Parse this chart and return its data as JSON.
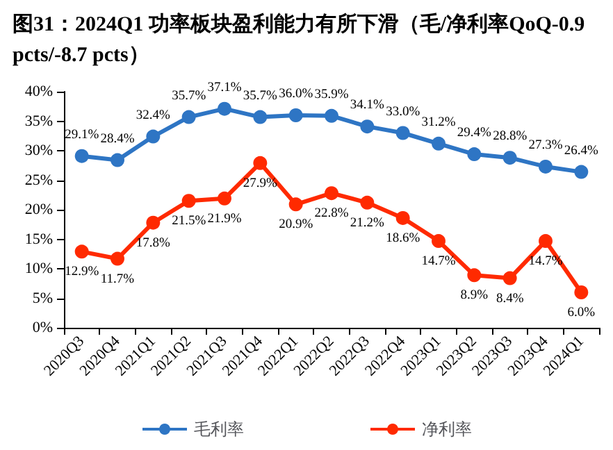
{
  "chart_data": {
    "type": "line",
    "title": "图31：2024Q1 功率板块盈利能力有所下滑（毛/净利率QoQ-0.9 pcts/-8.7 pcts）",
    "categories": [
      "2020Q3",
      "2020Q4",
      "2021Q1",
      "2021Q2",
      "2021Q3",
      "2021Q4",
      "2022Q1",
      "2022Q2",
      "2022Q3",
      "2022Q4",
      "2023Q1",
      "2023Q2",
      "2023Q3",
      "2023Q4",
      "2024Q1"
    ],
    "series": [
      {
        "name": "毛利率",
        "color": "#2e75c4",
        "values": [
          29.1,
          28.4,
          32.4,
          35.7,
          37.1,
          35.7,
          36.0,
          35.9,
          34.1,
          33.0,
          31.2,
          29.4,
          28.8,
          27.3,
          26.4
        ],
        "value_labels": [
          "29.1%",
          "28.4%",
          "32.4%",
          "35.7%",
          "37.1%",
          "35.7%",
          "36.0%",
          "35.9%",
          "34.1%",
          "33.0%",
          "31.2%",
          "29.4%",
          "28.8%",
          "27.3%",
          "26.4%"
        ]
      },
      {
        "name": "净利率",
        "color": "#ff2a00",
        "values": [
          12.9,
          11.7,
          17.8,
          21.5,
          21.9,
          27.9,
          20.9,
          22.8,
          21.2,
          18.6,
          14.7,
          8.9,
          8.4,
          14.7,
          6.0
        ],
        "value_labels": [
          "12.9%",
          "11.7%",
          "17.8%",
          "21.5%",
          "21.9%",
          "27.9%",
          "20.9%",
          "22.8%",
          "21.2%",
          "18.6%",
          "14.7%",
          "8.9%",
          "8.4%",
          "14.7%",
          "6.0%"
        ]
      }
    ],
    "ylim": [
      0,
      40
    ],
    "yticks": [
      {
        "value": 0,
        "label": "0%"
      },
      {
        "value": 5,
        "label": "5%"
      },
      {
        "value": 10,
        "label": "10%"
      },
      {
        "value": 15,
        "label": "15%"
      },
      {
        "value": 20,
        "label": "20%"
      },
      {
        "value": 25,
        "label": "25%"
      },
      {
        "value": 30,
        "label": "30%"
      },
      {
        "value": 35,
        "label": "35%"
      },
      {
        "value": 40,
        "label": "40%"
      }
    ],
    "legend": "bottom",
    "marker": "circle",
    "line_style": "solid",
    "grid": false
  }
}
